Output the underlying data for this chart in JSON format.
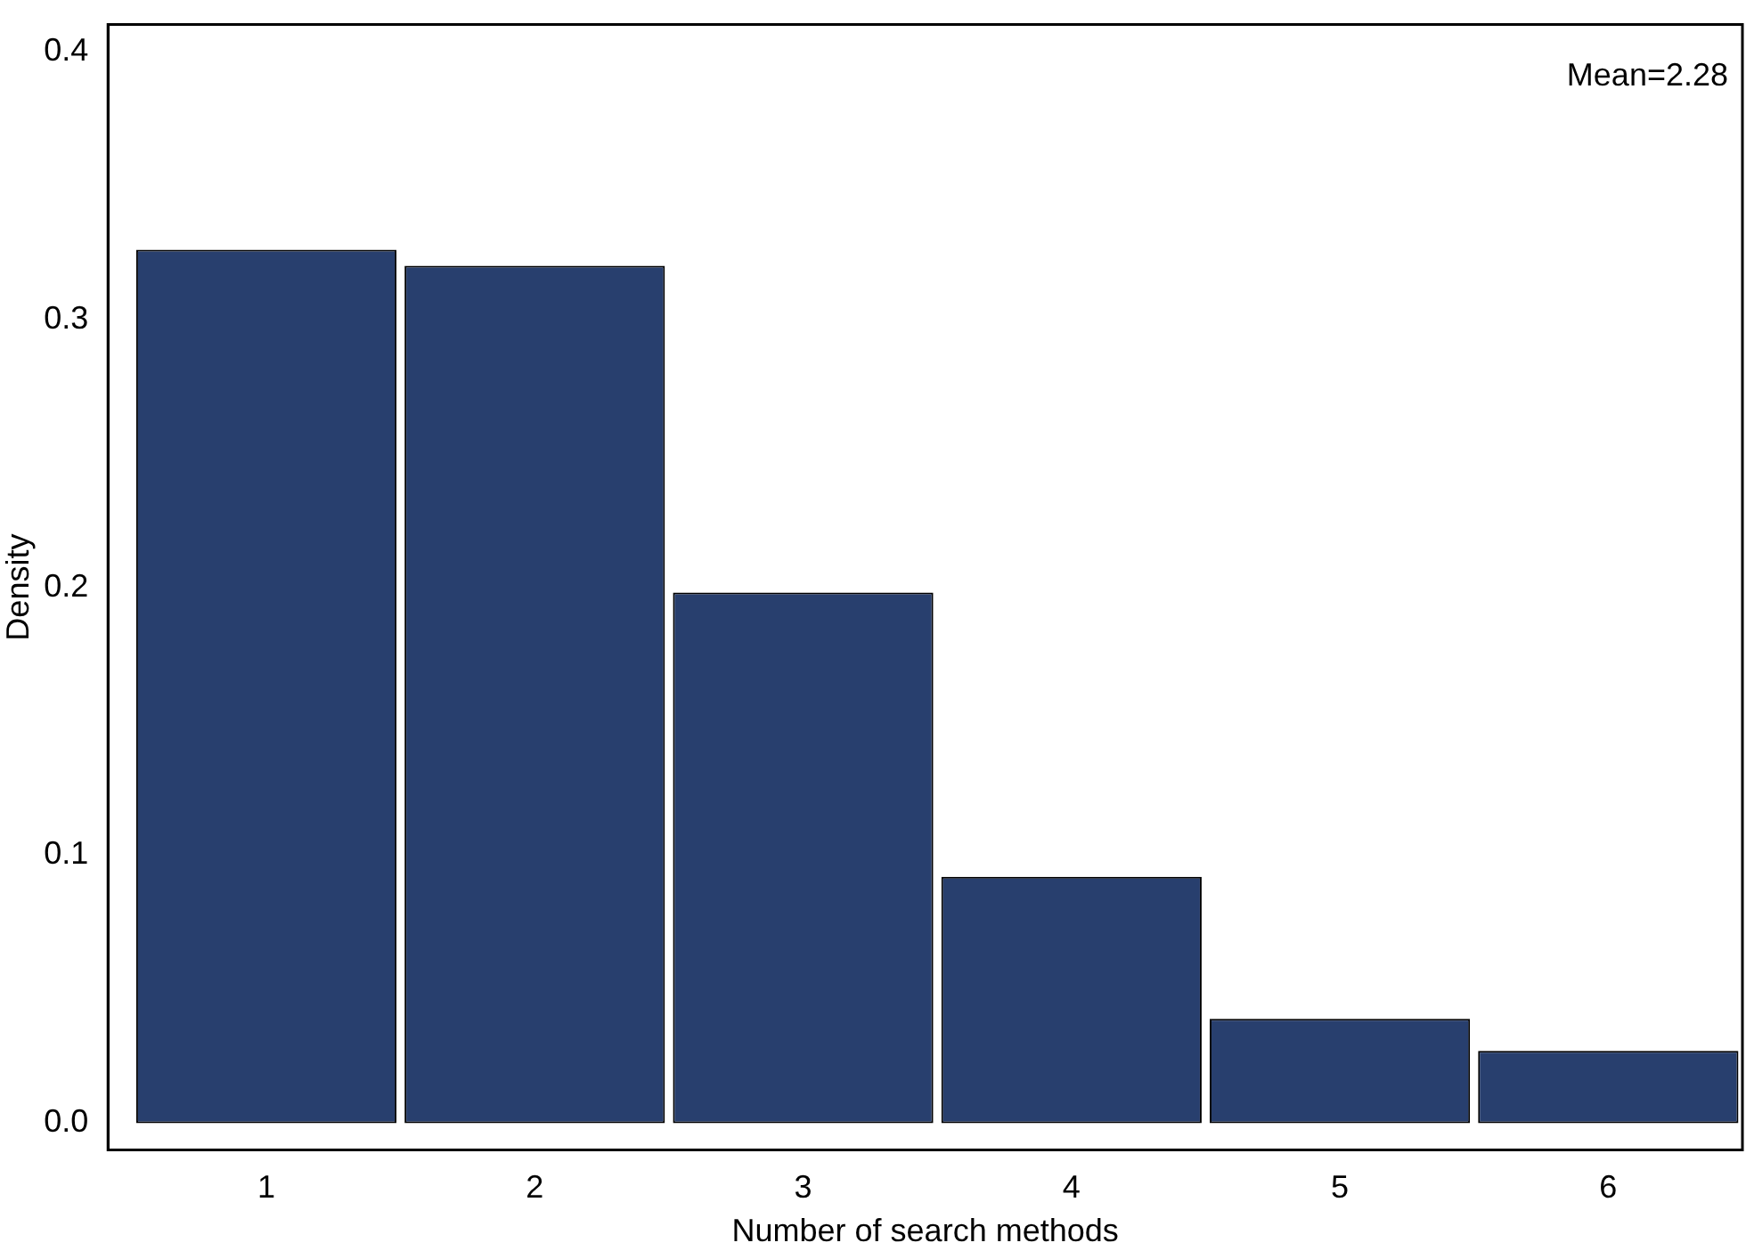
{
  "chart_data": {
    "type": "histogram",
    "xlabel": "Number of search methods",
    "ylabel": "Density",
    "bins": [
      0.5,
      1.5,
      2.5,
      3.5,
      4.5,
      5.5,
      6.5
    ],
    "values": [
      0.326,
      0.32,
      0.198,
      0.092,
      0.039,
      0.027
    ],
    "color": "#283f6e",
    "xlim": [
      0.41,
      6.5
    ],
    "xticks": [
      1,
      2,
      3,
      4,
      5,
      6
    ],
    "ylim": [
      -0.01,
      0.41
    ],
    "yticks": [
      {
        "value": 0,
        "label": "0.0"
      },
      0.1,
      0.2,
      0.3,
      0.4
    ],
    "annotations": [
      "Mean=2.28"
    ],
    "grid": false,
    "legend": false
  }
}
